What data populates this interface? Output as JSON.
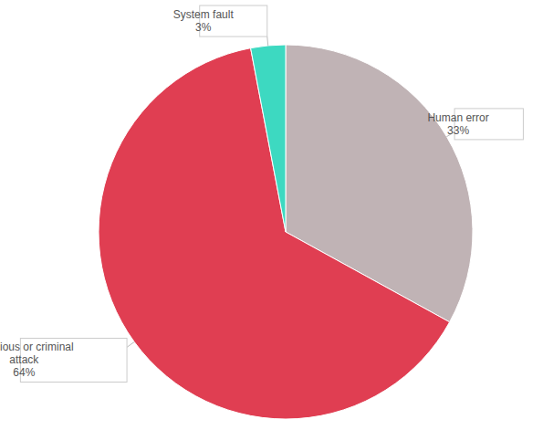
{
  "chart_data": {
    "type": "pie",
    "categories": [
      "Human error",
      "Malicious or criminal attack",
      "System fault"
    ],
    "values": [
      33,
      64,
      3
    ],
    "value_labels": [
      "33%",
      "64%",
      "3%"
    ],
    "colors": [
      "#c0b3b5",
      "#e03e52",
      "#3dd9c1"
    ],
    "data_labels": true
  }
}
